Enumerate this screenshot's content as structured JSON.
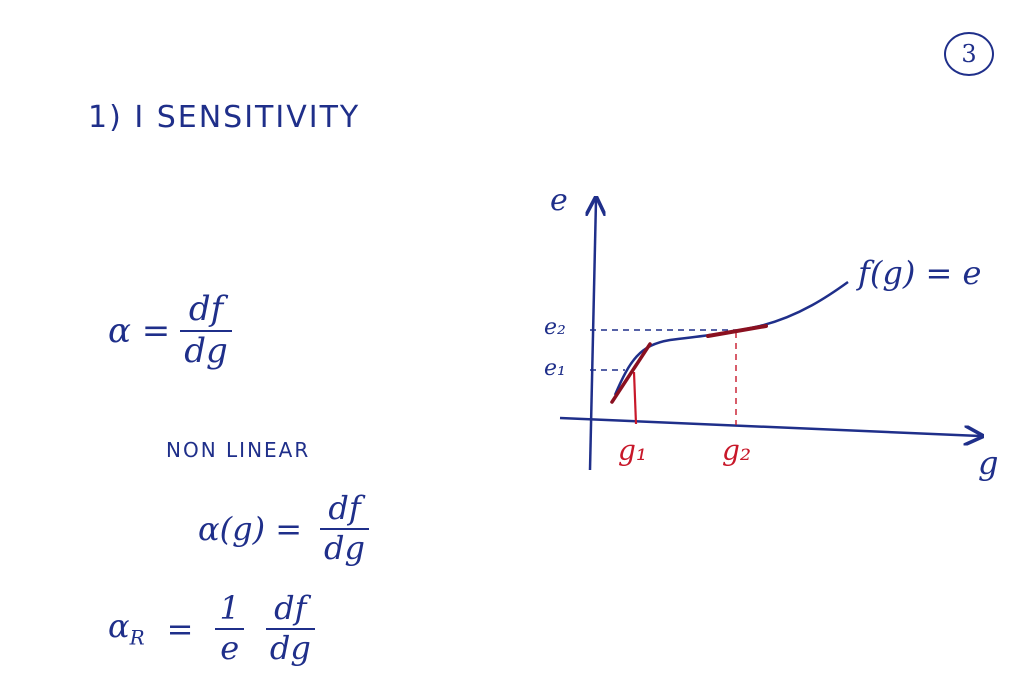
{
  "page_number": "3",
  "heading": "1) I SENSITIVITY",
  "eq_sensitivity": {
    "lhs": "α =",
    "num": "df",
    "den": "dg"
  },
  "nonlinear_label": "NON LINEAR",
  "eq_nonlinear": {
    "lhs": "α(g) =",
    "num": "df",
    "den": "dg"
  },
  "eq_relative": {
    "lhs_base": "α",
    "lhs_sub": "R",
    "eq": "=",
    "f1_num": "1",
    "f1_den": "e",
    "f2_num": "df",
    "f2_den": "dg"
  },
  "graph": {
    "y_axis_label": "e",
    "x_axis_label": "g",
    "curve_label": "f(g) = e",
    "y_ticks": [
      "e₂",
      "e₁"
    ],
    "x_ticks": [
      "g₁",
      "g₂"
    ]
  },
  "colors": {
    "ink": "#1f2f8a",
    "red": "#c8182a",
    "paper": "#ffffff"
  }
}
